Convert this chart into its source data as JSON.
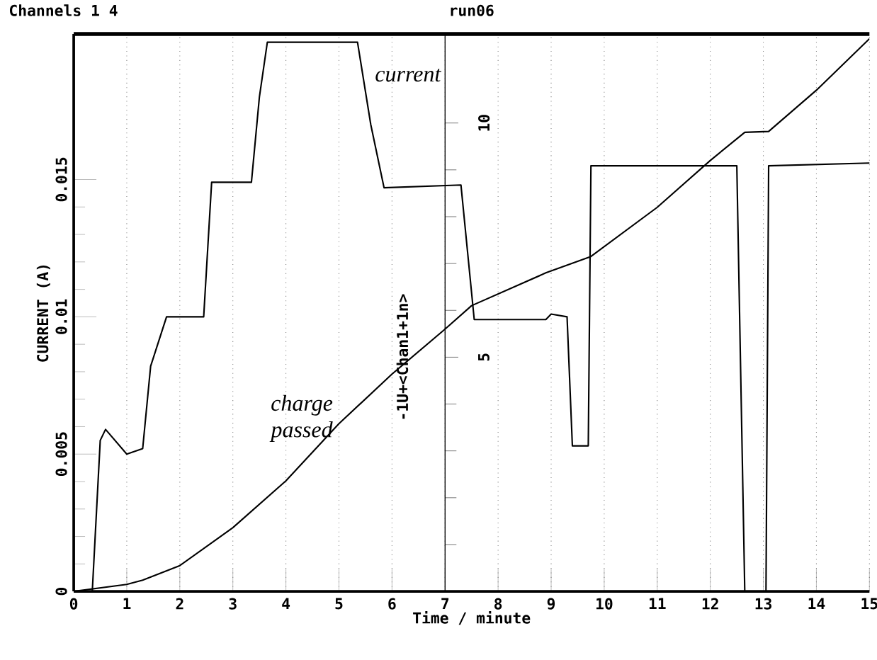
{
  "chart_data": {
    "type": "line",
    "title": "run06",
    "subtitle": "Channels 1 4",
    "xlabel": "Time / minute",
    "ylabel": "CURRENT (A)",
    "y2label": "-1U+<Chan1+1n>",
    "xlim": [
      0,
      15
    ],
    "xticks": [
      0,
      1,
      2,
      3,
      4,
      5,
      6,
      7,
      8,
      9,
      10,
      11,
      12,
      13,
      14,
      15
    ],
    "ylim": [
      0,
      0.0203
    ],
    "yticks": [
      0,
      0.005,
      0.01,
      0.015
    ],
    "y2lim": [
      0,
      11.9
    ],
    "y2ticks": [
      {
        "value": 0,
        "label": null
      },
      5,
      10
    ],
    "grid": "x",
    "marker": "none",
    "line_style": "solid",
    "series": [
      {
        "name": "current",
        "color": "#000000",
        "x": [
          0,
          0.35,
          0.5,
          0.6,
          1.0,
          1.3,
          1.45,
          1.75,
          2.45,
          2.6,
          3.35,
          3.5,
          3.65,
          5.35,
          5.6,
          5.85,
          7.3,
          7.55,
          8.9,
          9.0,
          9.3,
          9.4,
          9.7,
          9.75,
          12.5,
          12.65,
          13.05,
          13.1,
          15
        ],
        "values": [
          0,
          0,
          0.0055,
          0.0059,
          0.005,
          0.0052,
          0.0082,
          0.01,
          0.01,
          0.0149,
          0.0149,
          0.018,
          0.02,
          0.02,
          0.017,
          0.0147,
          0.0148,
          0.0099,
          0.0099,
          0.0101,
          0.01,
          0.0053,
          0.0053,
          0.0155,
          0.0155,
          0,
          0,
          0.0155,
          0.0156
        ]
      },
      {
        "name": "charge passed",
        "color": "#000000",
        "axis": "y2",
        "x": [
          0,
          1,
          1.3,
          2,
          3,
          4,
          5,
          6,
          7,
          7.5,
          8.9,
          9.75,
          11,
          12,
          12.65,
          13.1,
          14,
          15
        ],
        "values": [
          0,
          0.15,
          0.24,
          0.55,
          1.36,
          2.36,
          3.58,
          4.64,
          5.6,
          6.1,
          6.8,
          7.15,
          8.2,
          9.2,
          9.8,
          9.82,
          10.7,
          11.8
        ]
      }
    ]
  }
}
